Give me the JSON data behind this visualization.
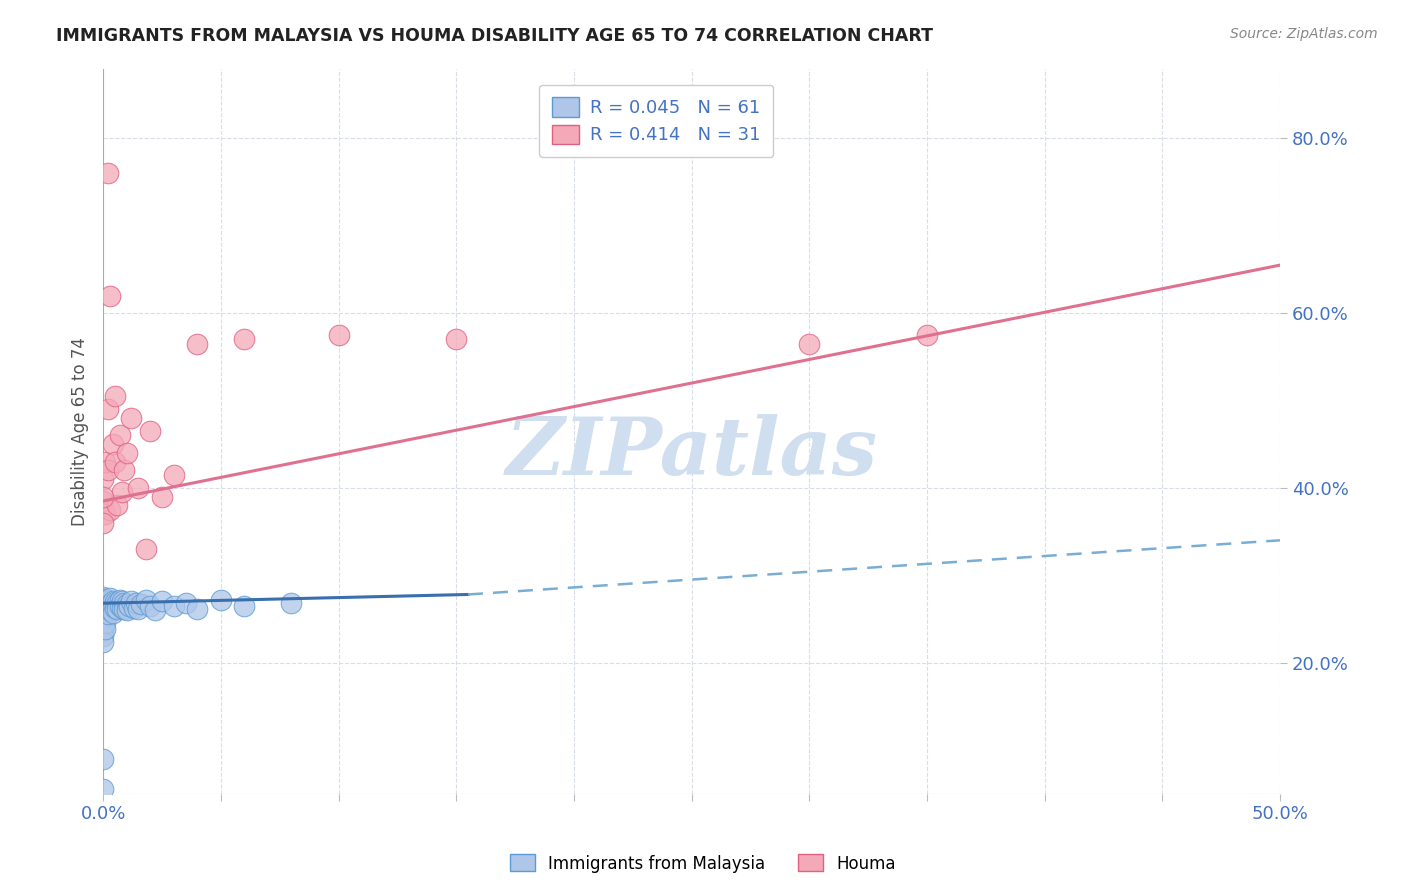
{
  "title": "IMMIGRANTS FROM MALAYSIA VS HOUMA DISABILITY AGE 65 TO 74 CORRELATION CHART",
  "source_text": "Source: ZipAtlas.com",
  "ylabel": "Disability Age 65 to 74",
  "xlim": [
    0.0,
    0.5
  ],
  "ylim": [
    0.05,
    0.88
  ],
  "ytick_right_labels": [
    "20.0%",
    "40.0%",
    "60.0%",
    "80.0%"
  ],
  "ytick_right_values": [
    0.2,
    0.4,
    0.6,
    0.8
  ],
  "legend_r1": "R = 0.045",
  "legend_n1": "N = 61",
  "legend_r2": "R = 0.414",
  "legend_n2": "N = 31",
  "blue_fill": "#aec6e8",
  "blue_edge": "#5b9bd5",
  "pink_fill": "#f4a9b8",
  "pink_edge": "#e06080",
  "trend_blue_solid_color": "#3a6faf",
  "trend_blue_dash_color": "#7aadd4",
  "trend_pink_color": "#e07090",
  "watermark_color": "#d0dff0",
  "background_color": "#ffffff",
  "grid_color": "#d8dde8",
  "blue_solid_trend_x": [
    0.0,
    0.155
  ],
  "blue_solid_trend_y": [
    0.268,
    0.278
  ],
  "blue_dash_trend_x": [
    0.155,
    0.5
  ],
  "blue_dash_trend_y": [
    0.278,
    0.34
  ],
  "pink_trend_x": [
    0.0,
    0.5
  ],
  "pink_trend_y": [
    0.385,
    0.655
  ],
  "blue_points_x": [
    0.0,
    0.0,
    0.0,
    0.0,
    0.0,
    0.0,
    0.0,
    0.0,
    0.0,
    0.0,
    0.0,
    0.0,
    0.0,
    0.0,
    0.0,
    0.0,
    0.001,
    0.001,
    0.001,
    0.001,
    0.001,
    0.001,
    0.002,
    0.002,
    0.002,
    0.003,
    0.003,
    0.003,
    0.004,
    0.004,
    0.004,
    0.005,
    0.005,
    0.006,
    0.006,
    0.007,
    0.007,
    0.008,
    0.008,
    0.009,
    0.009,
    0.01,
    0.01,
    0.011,
    0.012,
    0.013,
    0.014,
    0.015,
    0.016,
    0.018,
    0.02,
    0.022,
    0.025,
    0.03,
    0.035,
    0.04,
    0.05,
    0.06,
    0.08,
    0.0,
    0.0
  ],
  "blue_points_y": [
    0.268,
    0.27,
    0.265,
    0.272,
    0.26,
    0.275,
    0.263,
    0.269,
    0.271,
    0.267,
    0.255,
    0.248,
    0.242,
    0.236,
    0.23,
    0.224,
    0.273,
    0.266,
    0.259,
    0.252,
    0.245,
    0.238,
    0.27,
    0.263,
    0.256,
    0.274,
    0.267,
    0.26,
    0.271,
    0.264,
    0.257,
    0.269,
    0.262,
    0.268,
    0.261,
    0.272,
    0.265,
    0.27,
    0.263,
    0.268,
    0.261,
    0.267,
    0.26,
    0.265,
    0.27,
    0.263,
    0.268,
    0.261,
    0.267,
    0.272,
    0.265,
    0.26,
    0.27,
    0.265,
    0.268,
    0.261,
    0.272,
    0.265,
    0.268,
    0.09,
    0.055
  ],
  "pink_points_x": [
    0.0,
    0.0,
    0.001,
    0.001,
    0.002,
    0.002,
    0.003,
    0.004,
    0.005,
    0.006,
    0.007,
    0.008,
    0.009,
    0.01,
    0.012,
    0.015,
    0.018,
    0.02,
    0.025,
    0.03,
    0.04,
    0.06,
    0.1,
    0.15,
    0.3,
    0.35,
    0.002,
    0.003,
    0.005,
    0.0,
    0.0
  ],
  "pink_points_y": [
    0.385,
    0.41,
    0.37,
    0.43,
    0.49,
    0.42,
    0.375,
    0.45,
    0.43,
    0.38,
    0.46,
    0.395,
    0.42,
    0.44,
    0.48,
    0.4,
    0.33,
    0.465,
    0.39,
    0.415,
    0.565,
    0.57,
    0.575,
    0.57,
    0.565,
    0.575,
    0.76,
    0.62,
    0.505,
    0.39,
    0.36
  ]
}
